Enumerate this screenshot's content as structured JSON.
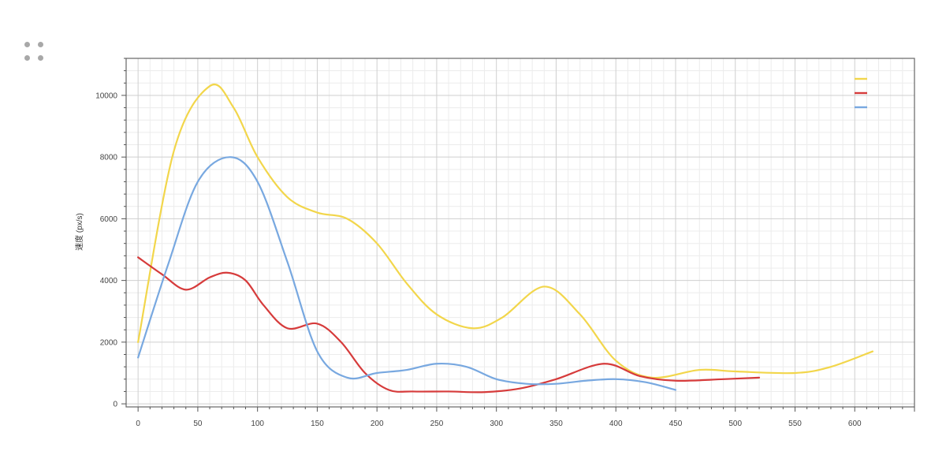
{
  "chart_data": {
    "type": "line",
    "ylabel": "速度 (px/s)",
    "xlim": [
      -10,
      650
    ],
    "ylim": [
      -100,
      11200
    ],
    "x_ticks": [
      0,
      50,
      100,
      150,
      200,
      250,
      300,
      350,
      400,
      450,
      500,
      550,
      600
    ],
    "y_ticks": [
      0,
      2000,
      4000,
      6000,
      8000,
      10000
    ],
    "grid": true,
    "legend": "top-right",
    "series": [
      {
        "color": "#f2d64b",
        "x": [
          0,
          30,
          60,
          80,
          100,
          125,
          150,
          175,
          200,
          225,
          250,
          280,
          305,
          340,
          370,
          400,
          430,
          470,
          500,
          550,
          580,
          615
        ],
        "y": [
          2000,
          8200,
          10300,
          9600,
          8000,
          6700,
          6200,
          6000,
          5200,
          3900,
          2900,
          2450,
          2800,
          3800,
          2900,
          1400,
          850,
          1100,
          1050,
          1000,
          1200,
          1700
        ]
      },
      {
        "color": "#d63b3b",
        "x": [
          0,
          20,
          40,
          60,
          75,
          90,
          105,
          125,
          150,
          170,
          190,
          210,
          230,
          260,
          290,
          320,
          350,
          390,
          420,
          450,
          490,
          520
        ],
        "y": [
          4750,
          4200,
          3700,
          4100,
          4250,
          4000,
          3200,
          2450,
          2600,
          2000,
          1000,
          450,
          400,
          400,
          380,
          500,
          800,
          1300,
          900,
          750,
          800,
          850
        ]
      },
      {
        "color": "#78a8e0",
        "x": [
          0,
          25,
          50,
          77,
          100,
          125,
          150,
          175,
          200,
          225,
          250,
          275,
          300,
          325,
          350,
          375,
          400,
          425,
          450
        ],
        "y": [
          1500,
          4500,
          7200,
          8000,
          7200,
          4600,
          1700,
          850,
          1000,
          1100,
          1300,
          1200,
          800,
          650,
          650,
          750,
          800,
          700,
          450
        ]
      }
    ]
  }
}
